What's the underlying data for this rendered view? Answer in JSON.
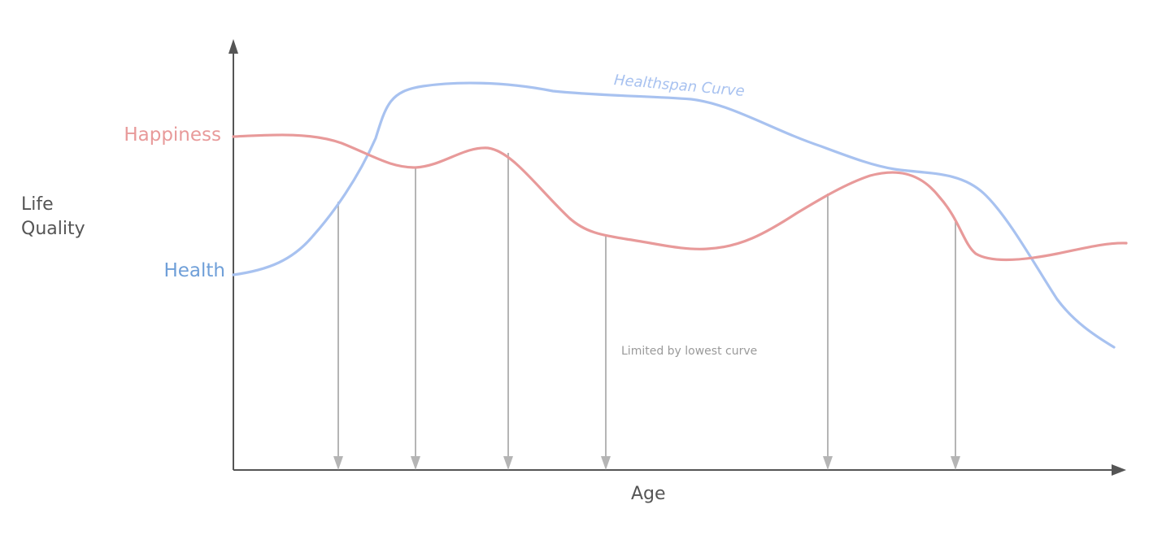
{
  "labels": {
    "y_axis": "Life\nQuality",
    "x_axis": "Age",
    "happiness": "Happiness",
    "health": "Health",
    "healthspan_curve": "Healthspan Curve",
    "annotation": "Limited by lowest curve"
  },
  "colors": {
    "happiness": "#e89a9a",
    "health": "#a8c2f0",
    "health_label": "#6f9fd8",
    "axis": "#555555",
    "drop_lines": "#b5b5b5",
    "annotation": "#9a9a9a"
  }
}
